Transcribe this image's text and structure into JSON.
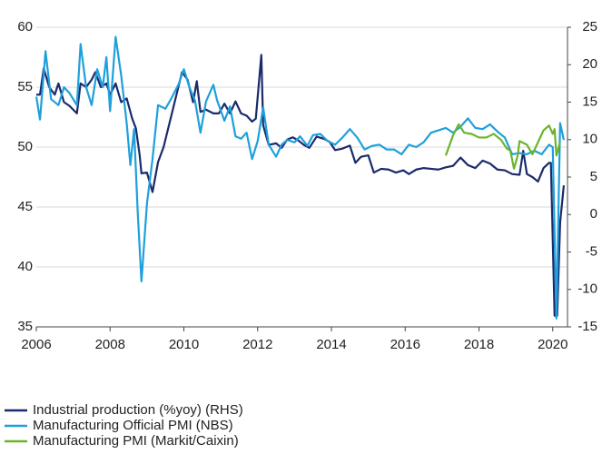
{
  "chart_data": {
    "type": "line",
    "xlim": [
      2006,
      2020.4
    ],
    "xticks": [
      2006,
      2008,
      2010,
      2012,
      2014,
      2016,
      2018,
      2020
    ],
    "ylim": [
      35,
      60
    ],
    "yticks": [
      35,
      40,
      45,
      50,
      55,
      60
    ],
    "y2lim": [
      -15,
      25
    ],
    "y2ticks": [
      -15,
      -10,
      -5,
      0,
      5,
      10,
      15,
      20,
      25
    ],
    "grid": true,
    "legend": "bottom",
    "series": [
      {
        "name": "Industrial production (%yoy) (RHS)",
        "color": "#1b2a6b",
        "axis": "y2",
        "x": [
          2006.0,
          2006.1,
          2006.2,
          2006.35,
          2006.5,
          2006.6,
          2006.75,
          2006.9,
          2007.1,
          2007.2,
          2007.35,
          2007.5,
          2007.6,
          2007.75,
          2007.9,
          2008.0,
          2008.15,
          2008.3,
          2008.45,
          2008.6,
          2008.7,
          2008.8,
          2008.85,
          2009.0,
          2009.15,
          2009.3,
          2009.45,
          2009.6,
          2009.8,
          2009.95,
          2010.1,
          2010.25,
          2010.35,
          2010.45,
          2010.6,
          2010.8,
          2010.95,
          2011.1,
          2011.25,
          2011.4,
          2011.55,
          2011.7,
          2011.85,
          2011.95,
          2012.1,
          2012.15,
          2012.3,
          2012.5,
          2012.65,
          2012.8,
          2012.95,
          2013.1,
          2013.25,
          2013.4,
          2013.6,
          2013.8,
          2013.95,
          2014.1,
          2014.3,
          2014.5,
          2014.65,
          2014.8,
          2015.0,
          2015.15,
          2015.35,
          2015.55,
          2015.75,
          2015.95,
          2016.1,
          2016.3,
          2016.5,
          2016.7,
          2016.9,
          2017.1,
          2017.3,
          2017.5,
          2017.7,
          2017.9,
          2018.1,
          2018.3,
          2018.5,
          2018.7,
          2018.9,
          2019.1,
          2019.2,
          2019.3,
          2019.45,
          2019.6,
          2019.75,
          2019.9,
          2019.95,
          2020.05,
          2020.12,
          2020.2,
          2020.3
        ],
        "values": [
          16,
          16,
          19.5,
          17,
          16,
          17.5,
          15,
          14.5,
          13.5,
          17.5,
          17,
          18,
          19,
          17,
          17.5,
          16,
          17.5,
          15,
          15.5,
          12.8,
          11.5,
          8,
          5.5,
          5.6,
          3,
          7,
          9,
          12,
          16,
          19,
          18,
          15,
          17.8,
          13.7,
          14,
          13.5,
          13.5,
          14.8,
          13.5,
          15.1,
          13.5,
          13.2,
          12.4,
          12.8,
          21.3,
          11.9,
          9.3,
          9.5,
          8.9,
          10,
          10.3,
          9.9,
          9.3,
          8.9,
          10.4,
          10.1,
          9.7,
          8.6,
          8.8,
          9.2,
          6.9,
          7.7,
          7.9,
          5.6,
          6.1,
          6,
          5.6,
          5.9,
          5.4,
          6,
          6.2,
          6.1,
          6,
          6.3,
          6.5,
          7.6,
          6.6,
          6.2,
          7.2,
          6.8,
          6,
          5.9,
          5.4,
          5.3,
          8.5,
          5.4,
          5,
          4.4,
          6.2,
          6.9,
          6.9,
          -13.5,
          -13.5,
          -1.1,
          3.9
        ]
      },
      {
        "name": "Manufacturing Official PMI (NBS)",
        "color": "#1ea0dc",
        "x": [
          2006.0,
          2006.1,
          2006.25,
          2006.4,
          2006.6,
          2006.75,
          2006.9,
          2007.1,
          2007.2,
          2007.35,
          2007.5,
          2007.65,
          2007.8,
          2007.9,
          2008.0,
          2008.15,
          2008.3,
          2008.45,
          2008.55,
          2008.65,
          2008.75,
          2008.85,
          2009.0,
          2009.15,
          2009.3,
          2009.5,
          2009.65,
          2009.85,
          2010.0,
          2010.15,
          2010.3,
          2010.45,
          2010.6,
          2010.8,
          2010.9,
          2011.1,
          2011.25,
          2011.4,
          2011.55,
          2011.7,
          2011.85,
          2012.0,
          2012.15,
          2012.3,
          2012.5,
          2012.65,
          2012.8,
          2013.0,
          2013.15,
          2013.35,
          2013.5,
          2013.7,
          2013.9,
          2014.1,
          2014.3,
          2014.5,
          2014.7,
          2014.9,
          2015.1,
          2015.3,
          2015.5,
          2015.7,
          2015.9,
          2016.1,
          2016.3,
          2016.5,
          2016.7,
          2016.9,
          2017.1,
          2017.3,
          2017.5,
          2017.7,
          2017.9,
          2018.1,
          2018.3,
          2018.5,
          2018.7,
          2018.9,
          2019.1,
          2019.3,
          2019.5,
          2019.7,
          2019.9,
          2020.0,
          2020.1,
          2020.2,
          2020.3
        ],
        "values": [
          54.2,
          52.3,
          58,
          54,
          53.5,
          55,
          54.5,
          53.5,
          58.6,
          55,
          53.5,
          56.5,
          55,
          57.5,
          53,
          59.2,
          56,
          52,
          48.5,
          51.5,
          44.5,
          38.8,
          45.3,
          49,
          53.5,
          53.2,
          54,
          55.2,
          56.5,
          55,
          53.9,
          51.2,
          53.8,
          55.2,
          53.9,
          52.2,
          53.4,
          50.9,
          50.7,
          51.2,
          49,
          50.5,
          53.3,
          50.2,
          49.2,
          50.2,
          50.6,
          50.4,
          50.9,
          50.1,
          51,
          51.1,
          50.5,
          50.2,
          50.8,
          51.5,
          50.8,
          49.8,
          50.1,
          50.2,
          49.8,
          49.8,
          49.4,
          50.2,
          50,
          50.4,
          51.2,
          51.4,
          51.6,
          51.2,
          51.7,
          52.4,
          51.6,
          51.5,
          51.9,
          51.3,
          50.8,
          49.4,
          49.5,
          49.4,
          49.7,
          49.4,
          50.2,
          50,
          35.7,
          52,
          50.6
        ]
      },
      {
        "name": "Manufacturing PMI (Markit/Caixin)",
        "color": "#6ab42d",
        "x": [
          2017.1,
          2017.3,
          2017.45,
          2017.6,
          2017.8,
          2018.0,
          2018.2,
          2018.4,
          2018.6,
          2018.75,
          2018.85,
          2018.95,
          2019.05,
          2019.1,
          2019.3,
          2019.45,
          2019.6,
          2019.75,
          2019.9,
          2020.0,
          2020.05,
          2020.1,
          2020.2
        ],
        "values": [
          49.3,
          51,
          51.9,
          51.2,
          51.1,
          50.8,
          50.8,
          51.1,
          50.6,
          49.9,
          49.7,
          48.2,
          49.3,
          50.5,
          50.2,
          49.4,
          50.4,
          51.4,
          51.8,
          51.1,
          51.5,
          49.3,
          50.4
        ]
      }
    ]
  }
}
